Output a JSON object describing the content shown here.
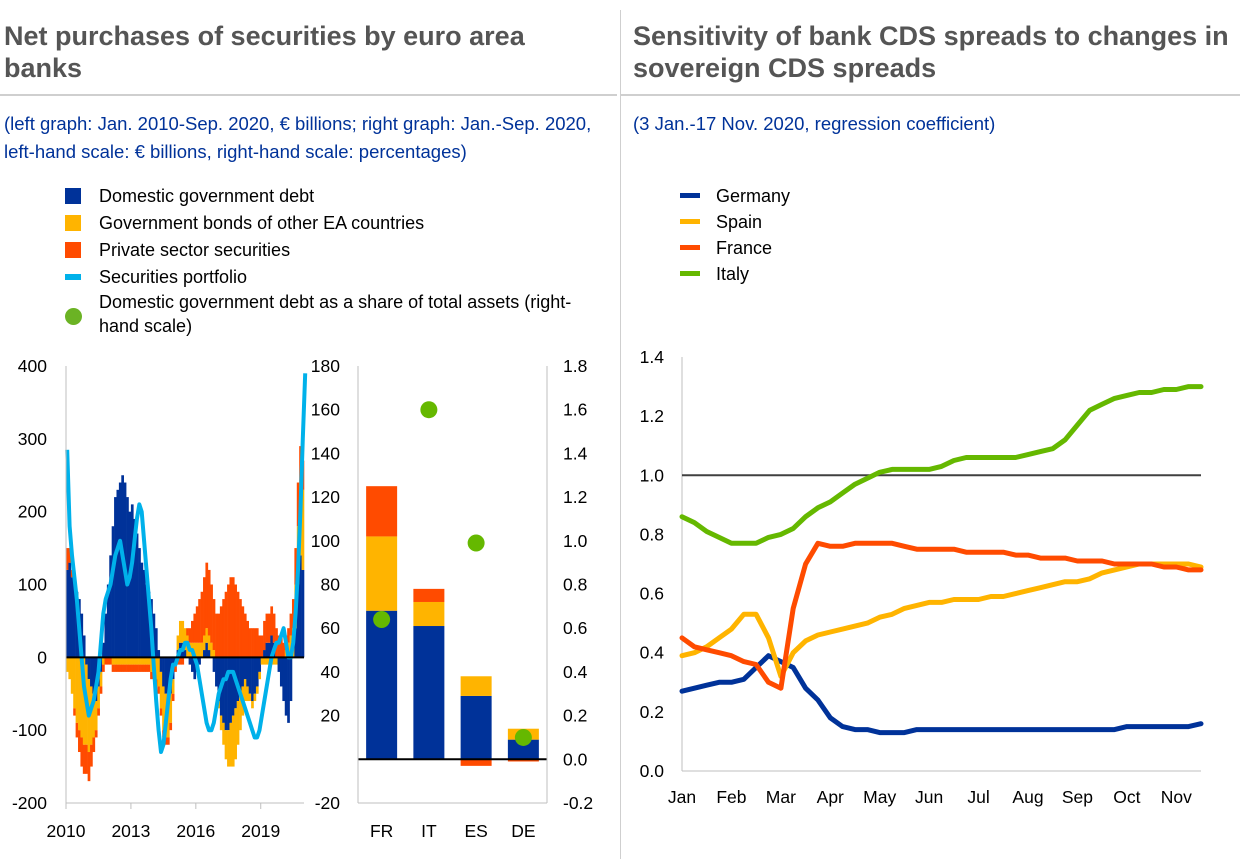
{
  "left": {
    "title": "Net purchases of securities by euro area banks",
    "subtitle": "(left graph: Jan. 2010-Sep. 2020, € billions; right graph: Jan.-Sep. 2020, left-hand scale: € billions, right-hand scale: percentages)",
    "legend": [
      {
        "label": "Domestic government debt",
        "color": "#003299"
      },
      {
        "label": "Government bonds of other EA countries",
        "color": "#ffb400"
      },
      {
        "label": "Private sector securities",
        "color": "#ff4b00"
      },
      {
        "label": "Securities portfolio",
        "color": "#00b1ea"
      },
      {
        "label": "Domestic government debt as a share of total assets (right-hand scale)",
        "color": "#65b800"
      }
    ]
  },
  "right": {
    "title": "Sensitivity of bank CDS spreads to changes in sovereign CDS spreads",
    "subtitle": "(3 Jan.-17 Nov. 2020, regression coefficient)",
    "legend": [
      {
        "label": "Germany",
        "color": "#003299"
      },
      {
        "label": "Spain",
        "color": "#ffb400"
      },
      {
        "label": "France",
        "color": "#ff4b00"
      },
      {
        "label": "Italy",
        "color": "#65b800"
      }
    ]
  },
  "chart_data": [
    {
      "type": "bar",
      "subtype": "stacked-bar-with-line",
      "x_tick_labels": [
        "2010",
        "2013",
        "2016",
        "2019"
      ],
      "ylim": [
        -200,
        400
      ],
      "y_ticks": [
        -200,
        -100,
        0,
        100,
        200,
        300,
        400
      ],
      "series": [
        {
          "name": "Domestic government debt",
          "kind": "bar",
          "values": [
            120,
            130,
            110,
            100,
            90,
            80,
            60,
            30,
            -10,
            -30,
            -40,
            -50,
            -60,
            -40,
            -20,
            20,
            60,
            100,
            140,
            180,
            220,
            230,
            240,
            250,
            240,
            220,
            200,
            210,
            190,
            170,
            150,
            130,
            120,
            100,
            90,
            80,
            60,
            40,
            10,
            -20,
            -40,
            -50,
            -60,
            -50,
            -30,
            -10,
            10,
            20,
            20,
            10,
            0,
            -10,
            -20,
            -30,
            -20,
            -10,
            0,
            10,
            20,
            10,
            0,
            -20,
            -40,
            -60,
            -80,
            -90,
            -100,
            -100,
            -90,
            -80,
            -70,
            -60,
            -50,
            -40,
            -30,
            -40,
            -50,
            -60,
            -50,
            -40,
            -20,
            0,
            10,
            20,
            20,
            30,
            20,
            0,
            -20,
            -40,
            -60,
            -80,
            -90,
            -60,
            0,
            40,
            100,
            140,
            120
          ]
        },
        {
          "name": "Government bonds of other EA countries",
          "kind": "bar",
          "values": [
            -20,
            -30,
            -50,
            -70,
            -90,
            -100,
            -110,
            -120,
            -110,
            -100,
            -80,
            -60,
            -40,
            -30,
            -20,
            -10,
            0,
            0,
            0,
            -10,
            -10,
            -10,
            -10,
            -10,
            -10,
            -10,
            -10,
            -10,
            -10,
            -10,
            -10,
            -10,
            -10,
            -10,
            -10,
            -20,
            -20,
            -30,
            -40,
            -50,
            -60,
            -60,
            -50,
            -40,
            -20,
            0,
            20,
            30,
            30,
            30,
            30,
            20,
            20,
            20,
            20,
            20,
            20,
            20,
            20,
            20,
            20,
            10,
            0,
            -10,
            -20,
            -30,
            -40,
            -50,
            -60,
            -70,
            -70,
            -60,
            -50,
            -40,
            -30,
            -20,
            -10,
            -10,
            -10,
            -10,
            -10,
            -10,
            -10,
            -10,
            -10,
            -10,
            -10,
            -10,
            0,
            0,
            0,
            10,
            20,
            30,
            40,
            60,
            80,
            100,
            110
          ]
        },
        {
          "name": "Private sector securities",
          "kind": "bar",
          "values": [
            30,
            20,
            10,
            -10,
            -20,
            -30,
            -40,
            -40,
            -40,
            -40,
            -30,
            -20,
            -10,
            -10,
            -10,
            -10,
            -10,
            -10,
            -10,
            -10,
            -10,
            -10,
            -10,
            -10,
            -10,
            -10,
            -10,
            -10,
            -10,
            -10,
            -10,
            -10,
            -10,
            -10,
            -10,
            -10,
            -10,
            -10,
            -10,
            -10,
            -10,
            -10,
            -10,
            -10,
            -10,
            -10,
            -10,
            -10,
            -10,
            0,
            10,
            20,
            30,
            40,
            50,
            60,
            70,
            80,
            90,
            90,
            80,
            70,
            60,
            60,
            70,
            80,
            90,
            100,
            110,
            110,
            100,
            90,
            80,
            70,
            60,
            50,
            40,
            40,
            40,
            40,
            30,
            30,
            40,
            40,
            40,
            40,
            40,
            40,
            30,
            30,
            20,
            20,
            20,
            30,
            40,
            50,
            60,
            50,
            40
          ]
        },
        {
          "name": "Securities portfolio",
          "kind": "line",
          "values": [
            285,
            180,
            140,
            110,
            80,
            40,
            0,
            -40,
            -60,
            -80,
            -70,
            -60,
            -40,
            -20,
            20,
            60,
            80,
            90,
            100,
            120,
            140,
            150,
            160,
            140,
            120,
            100,
            110,
            130,
            160,
            190,
            210,
            200,
            160,
            120,
            80,
            40,
            -10,
            -60,
            -100,
            -130,
            -120,
            -90,
            -60,
            -30,
            -10,
            -10,
            0,
            10,
            10,
            20,
            20,
            10,
            10,
            0,
            -10,
            -30,
            -50,
            -70,
            -90,
            -100,
            -100,
            -90,
            -70,
            -50,
            -40,
            -30,
            -30,
            -20,
            -20,
            -20,
            -30,
            -40,
            -50,
            -60,
            -70,
            -80,
            -90,
            -100,
            -110,
            -110,
            -100,
            -80,
            -60,
            -40,
            -20,
            0,
            10,
            20,
            20,
            30,
            40,
            20,
            0,
            0,
            20,
            60,
            120,
            200,
            300,
            390
          ]
        }
      ]
    },
    {
      "type": "bar",
      "subtype": "stacked-bar-with-dots",
      "categories": [
        "FR",
        "IT",
        "ES",
        "DE"
      ],
      "ylim_left": [
        -20,
        180
      ],
      "ylim_right": [
        -0.2,
        1.8
      ],
      "y_ticks_left": [
        -20,
        20,
        40,
        60,
        80,
        100,
        120,
        140,
        160,
        180
      ],
      "y_ticks_right": [
        "-0.2",
        "0.0",
        "0.2",
        "0.4",
        "0.6",
        "0.8",
        "1.0",
        "1.2",
        "1.4",
        "1.6",
        "1.8"
      ],
      "series": [
        {
          "name": "Domestic government debt",
          "values": [
            68,
            61,
            29,
            9
          ]
        },
        {
          "name": "Government bonds of other EA countries",
          "values": [
            34,
            11,
            9,
            5
          ]
        },
        {
          "name": "Private sector securities",
          "values": [
            23,
            6,
            -3,
            -1
          ]
        },
        {
          "name": "Domestic government debt as a share of total assets (right-hand scale)",
          "kind": "dot",
          "values": [
            0.64,
            1.6,
            0.99,
            0.1
          ]
        }
      ]
    },
    {
      "type": "line",
      "x_tick_labels": [
        "Jan",
        "Feb",
        "Mar",
        "Apr",
        "May",
        "Jun",
        "Jul",
        "Aug",
        "Sep",
        "Oct",
        "Nov"
      ],
      "ylim": [
        0.0,
        1.4
      ],
      "y_ticks": [
        "0.0",
        "0.2",
        "0.4",
        "0.6",
        "0.8",
        "1.0",
        "1.2",
        "1.4"
      ],
      "reference_line": 1.0,
      "x_months": [
        0,
        0.25,
        0.5,
        0.75,
        1,
        1.25,
        1.5,
        1.75,
        2,
        2.25,
        2.5,
        2.75,
        3,
        3.25,
        3.5,
        3.75,
        4,
        4.25,
        4.5,
        4.75,
        5,
        5.25,
        5.5,
        5.75,
        6,
        6.25,
        6.5,
        6.75,
        7,
        7.25,
        7.5,
        7.75,
        8,
        8.25,
        8.5,
        8.75,
        9,
        9.25,
        9.5,
        9.75,
        10,
        10.25,
        10.5
      ],
      "series": [
        {
          "name": "Germany",
          "values": [
            0.27,
            0.28,
            0.29,
            0.3,
            0.3,
            0.31,
            0.35,
            0.39,
            0.37,
            0.35,
            0.28,
            0.24,
            0.18,
            0.15,
            0.14,
            0.14,
            0.13,
            0.13,
            0.13,
            0.14,
            0.14,
            0.14,
            0.14,
            0.14,
            0.14,
            0.14,
            0.14,
            0.14,
            0.14,
            0.14,
            0.14,
            0.14,
            0.14,
            0.14,
            0.14,
            0.14,
            0.15,
            0.15,
            0.15,
            0.15,
            0.15,
            0.15,
            0.16
          ]
        },
        {
          "name": "Spain",
          "values": [
            0.39,
            0.4,
            0.42,
            0.45,
            0.48,
            0.53,
            0.53,
            0.45,
            0.32,
            0.4,
            0.44,
            0.46,
            0.47,
            0.48,
            0.49,
            0.5,
            0.52,
            0.53,
            0.55,
            0.56,
            0.57,
            0.57,
            0.58,
            0.58,
            0.58,
            0.59,
            0.59,
            0.6,
            0.61,
            0.62,
            0.63,
            0.64,
            0.64,
            0.65,
            0.67,
            0.68,
            0.69,
            0.7,
            0.7,
            0.7,
            0.7,
            0.7,
            0.69
          ]
        },
        {
          "name": "France",
          "values": [
            0.45,
            0.42,
            0.41,
            0.4,
            0.39,
            0.37,
            0.36,
            0.3,
            0.28,
            0.55,
            0.7,
            0.77,
            0.76,
            0.76,
            0.77,
            0.77,
            0.77,
            0.77,
            0.76,
            0.75,
            0.75,
            0.75,
            0.75,
            0.74,
            0.74,
            0.74,
            0.74,
            0.73,
            0.73,
            0.72,
            0.72,
            0.72,
            0.71,
            0.71,
            0.71,
            0.7,
            0.7,
            0.7,
            0.7,
            0.69,
            0.69,
            0.68,
            0.68
          ]
        },
        {
          "name": "Italy",
          "values": [
            0.86,
            0.84,
            0.81,
            0.79,
            0.77,
            0.77,
            0.77,
            0.79,
            0.8,
            0.82,
            0.86,
            0.89,
            0.91,
            0.94,
            0.97,
            0.99,
            1.01,
            1.02,
            1.02,
            1.02,
            1.02,
            1.03,
            1.05,
            1.06,
            1.06,
            1.06,
            1.06,
            1.06,
            1.07,
            1.08,
            1.09,
            1.12,
            1.17,
            1.22,
            1.24,
            1.26,
            1.27,
            1.28,
            1.28,
            1.29,
            1.29,
            1.3,
            1.3
          ]
        }
      ]
    }
  ]
}
